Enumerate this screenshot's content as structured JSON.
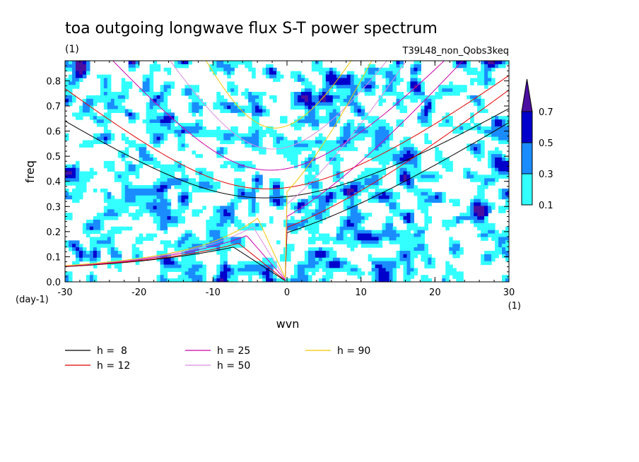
{
  "chart_data": {
    "type": "heatmap",
    "title": "toa outgoing longwave flux S-T power spectrum",
    "subtitle_left": "(1)",
    "subtitle_right": "T39L48_non_Qobs3keq",
    "xlabel": "wvn",
    "ylabel": "freq",
    "x_unit_label": "(1)",
    "y_unit_label": "(day-1)",
    "xlim": [
      -30,
      30
    ],
    "ylim": [
      0,
      0.88
    ],
    "x_ticks": [
      -30,
      -20,
      -10,
      0,
      10,
      20,
      30
    ],
    "y_ticks": [
      0.0,
      0.1,
      0.2,
      0.3,
      0.4,
      0.5,
      0.6,
      0.7,
      0.8
    ],
    "x_tick_labels": [
      "-30",
      "-20",
      "-10",
      "0",
      "10",
      "20",
      "30"
    ],
    "y_tick_labels": [
      "0.0",
      "0.1",
      "0.2",
      "0.3",
      "0.4",
      "0.5",
      "0.6",
      "0.7",
      "0.8"
    ],
    "colorbar": {
      "levels": [
        0.1,
        0.3,
        0.5,
        0.7
      ],
      "labels": [
        "0.1",
        "0.3",
        "0.5",
        "0.7"
      ],
      "colors": [
        "#33ffff",
        "#1a8cff",
        "#0000cc",
        "#4b0fa0"
      ]
    },
    "field_note_seed": 7,
    "blobs": [
      {
        "x": 4.5,
        "y": 0.11,
        "v": 0.75
      },
      {
        "x": 6.5,
        "y": 0.07,
        "v": 0.7
      },
      {
        "x": 13,
        "y": 0.34,
        "v": 0.65
      },
      {
        "x": -16,
        "y": 0.25,
        "v": 0.55
      },
      {
        "x": -11,
        "y": 0.38,
        "v": 0.5
      },
      {
        "x": -20,
        "y": 0.36,
        "v": 0.45
      },
      {
        "x": -4,
        "y": 0.06,
        "v": 0.45
      },
      {
        "x": 10,
        "y": 0.6,
        "v": 0.45
      },
      {
        "x": -8,
        "y": 0.58,
        "v": 0.4
      },
      {
        "x": 19,
        "y": 0.42,
        "v": 0.4
      },
      {
        "x": -25,
        "y": 0.16,
        "v": 0.4
      }
    ],
    "series": [
      {
        "name": "h =  8",
        "h": 8,
        "color": "#000000"
      },
      {
        "name": "h = 12",
        "h": 12,
        "color": "#e00000"
      },
      {
        "name": "h = 25",
        "h": 25,
        "color": "#cc00aa"
      },
      {
        "name": "h = 50",
        "h": 50,
        "color": "#d88be0"
      },
      {
        "name": "h = 90",
        "h": 90,
        "color": "#f0c800"
      }
    ]
  }
}
